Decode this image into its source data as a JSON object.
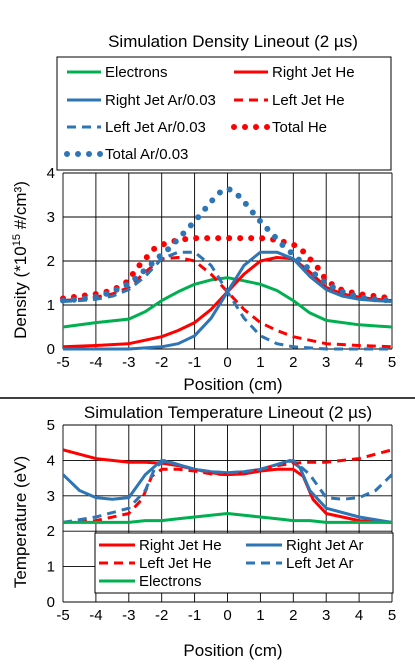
{
  "chart_data": [
    {
      "type": "line",
      "title": "Simulation Density Lineout (2 µs)",
      "xlabel": "Position (cm)",
      "ylabel_main": "Density (*10",
      "ylabel_exp": "15",
      "ylabel_rest": " #/cm³)",
      "xlim": [
        -5,
        5
      ],
      "ylim": [
        0,
        4
      ],
      "xticks": [
        "-5",
        "-4",
        "-3",
        "-2",
        "-1",
        "0",
        "1",
        "2",
        "3",
        "4",
        "5"
      ],
      "yticks": [
        "0",
        "1",
        "2",
        "3",
        "4"
      ],
      "grid": true,
      "legend_position": "top",
      "series": [
        {
          "name": "Electrons",
          "color": "#00b050",
          "style": "solid",
          "x": [
            -5,
            -4,
            -3,
            -2.5,
            -2,
            -1.5,
            -1,
            -0.5,
            0,
            0.5,
            1,
            1.5,
            2,
            2.5,
            3,
            4,
            5
          ],
          "y": [
            0.5,
            0.6,
            0.68,
            0.85,
            1.1,
            1.3,
            1.47,
            1.57,
            1.62,
            1.55,
            1.47,
            1.33,
            1.1,
            0.82,
            0.65,
            0.55,
            0.5
          ]
        },
        {
          "name": "Right Jet He",
          "color": "#ff0000",
          "style": "solid",
          "x": [
            -5,
            -4,
            -3,
            -2,
            -1.5,
            -1,
            -0.5,
            0,
            0.5,
            1,
            1.5,
            2,
            2.5,
            3,
            3.5,
            4,
            4.5,
            5
          ],
          "y": [
            0.05,
            0.08,
            0.12,
            0.28,
            0.42,
            0.6,
            0.9,
            1.3,
            1.7,
            2.0,
            2.08,
            2.05,
            1.75,
            1.4,
            1.25,
            1.18,
            1.13,
            1.1
          ]
        },
        {
          "name": "Right Jet Ar/0.03",
          "color": "#2e75b6",
          "style": "solid",
          "x": [
            -5,
            -3,
            -2,
            -1.5,
            -1,
            -0.5,
            0,
            0.5,
            1,
            1.5,
            2,
            2.5,
            3,
            3.5,
            4,
            4.5,
            5
          ],
          "y": [
            0,
            0,
            0.05,
            0.12,
            0.3,
            0.7,
            1.3,
            1.9,
            2.2,
            2.2,
            2.05,
            1.65,
            1.35,
            1.2,
            1.13,
            1.1,
            1.08
          ]
        },
        {
          "name": "Left Jet He",
          "color": "#ff0000",
          "style": "dash",
          "x": [
            -5,
            -4.5,
            -4,
            -3.5,
            -3,
            -2.5,
            -2,
            -1.5,
            -1,
            -0.5,
            0,
            0.5,
            1,
            1.5,
            2,
            3,
            4,
            5
          ],
          "y": [
            1.1,
            1.13,
            1.18,
            1.25,
            1.4,
            1.75,
            2.05,
            2.08,
            2.0,
            1.7,
            1.3,
            0.9,
            0.6,
            0.42,
            0.28,
            0.12,
            0.08,
            0.05
          ]
        },
        {
          "name": "Left Jet Ar/0.03",
          "color": "#2e75b6",
          "style": "dash",
          "x": [
            -5,
            -4.5,
            -4,
            -3.5,
            -3,
            -2.5,
            -2,
            -1.5,
            -1,
            -0.5,
            0,
            0.5,
            1,
            1.5,
            2,
            3,
            5
          ],
          "y": [
            1.08,
            1.1,
            1.13,
            1.2,
            1.35,
            1.65,
            2.05,
            2.2,
            2.2,
            1.9,
            1.3,
            0.7,
            0.3,
            0.12,
            0.05,
            0,
            0
          ]
        },
        {
          "name": "Total He",
          "color": "#ff0000",
          "style": "dot",
          "x": [
            -5,
            -4.5,
            -4,
            -3.5,
            -3,
            -2.8,
            -2.5,
            -2.2,
            -2,
            -1.5,
            -1,
            -0.5,
            0,
            0.5,
            1,
            1.5,
            2,
            2.2,
            2.5,
            2.8,
            3,
            3.5,
            4,
            4.5,
            5
          ],
          "y": [
            1.15,
            1.2,
            1.25,
            1.33,
            1.55,
            1.8,
            2.05,
            2.3,
            2.37,
            2.48,
            2.52,
            2.52,
            2.52,
            2.52,
            2.52,
            2.48,
            2.37,
            2.3,
            2.05,
            1.8,
            1.55,
            1.33,
            1.25,
            1.2,
            1.15
          ]
        },
        {
          "name": "Total Ar/0.03",
          "color": "#2e75b6",
          "style": "dot",
          "x": [
            -5,
            -4.5,
            -4,
            -3.5,
            -3,
            -2.5,
            -2,
            -1.75,
            -1.5,
            -1.25,
            -1,
            -0.75,
            -0.5,
            -0.25,
            0,
            0.25,
            0.5,
            0.75,
            1,
            1.25,
            1.5,
            1.75,
            2,
            2.5,
            3,
            3.5,
            4,
            4.5,
            5
          ],
          "y": [
            1.1,
            1.13,
            1.18,
            1.3,
            1.48,
            1.8,
            2.15,
            2.3,
            2.5,
            2.7,
            2.9,
            3.12,
            3.35,
            3.55,
            3.65,
            3.55,
            3.35,
            3.12,
            2.9,
            2.7,
            2.5,
            2.3,
            2.15,
            1.8,
            1.48,
            1.3,
            1.18,
            1.13,
            1.1
          ]
        }
      ]
    },
    {
      "type": "line",
      "title": "Simulation Temperature Lineout (2 µs)",
      "xlabel": "Position (cm)",
      "ylabel": "Temperature (eV)",
      "xlim": [
        -5,
        5
      ],
      "ylim": [
        0,
        5
      ],
      "xticks": [
        "-5",
        "-4",
        "-3",
        "-2",
        "-1",
        "0",
        "1",
        "2",
        "3",
        "4",
        "5"
      ],
      "yticks": [
        "0",
        "1",
        "2",
        "3",
        "4",
        "5"
      ],
      "grid": true,
      "legend_position": "bottom-center",
      "series": [
        {
          "name": "Right Jet He",
          "color": "#ff0000",
          "style": "solid",
          "x": [
            -5,
            -4,
            -3,
            -2.5,
            -2,
            -1.5,
            -1,
            -0.5,
            0,
            0.5,
            1,
            1.5,
            2,
            2.3,
            2.6,
            3,
            4,
            5
          ],
          "y": [
            4.3,
            4.05,
            3.95,
            3.95,
            3.92,
            3.85,
            3.75,
            3.65,
            3.6,
            3.62,
            3.7,
            3.75,
            3.75,
            3.55,
            2.9,
            2.5,
            2.3,
            2.25
          ]
        },
        {
          "name": "Right Jet Ar",
          "color": "#2e75b6",
          "style": "solid",
          "x": [
            -5,
            -4.5,
            -4,
            -3.5,
            -3,
            -2.5,
            -2,
            -1.5,
            -1,
            -0.5,
            0,
            0.5,
            1,
            1.5,
            1.9,
            2.2,
            2.5,
            3,
            4,
            5
          ],
          "y": [
            3.6,
            3.15,
            2.95,
            2.9,
            2.95,
            3.6,
            4.0,
            3.88,
            3.75,
            3.68,
            3.65,
            3.68,
            3.75,
            3.88,
            4.0,
            3.8,
            3.15,
            2.65,
            2.4,
            2.25
          ]
        },
        {
          "name": "Left Jet He",
          "color": "#ff0000",
          "style": "dash",
          "x": [
            -5,
            -4,
            -3,
            -2.6,
            -2.3,
            -2,
            -1.5,
            -1,
            -0.5,
            0,
            0.5,
            1,
            1.5,
            2,
            2.5,
            3,
            4,
            5
          ],
          "y": [
            2.25,
            2.3,
            2.5,
            2.9,
            3.55,
            3.75,
            3.75,
            3.7,
            3.62,
            3.6,
            3.65,
            3.75,
            3.85,
            3.92,
            3.95,
            3.95,
            4.05,
            4.3
          ]
        },
        {
          "name": "Left Jet Ar",
          "color": "#2e75b6",
          "style": "dash",
          "x": [
            -5,
            -4,
            -3,
            -2.5,
            -2.2,
            -1.9,
            -1.5,
            -1,
            -0.5,
            0,
            0.5,
            1,
            1.5,
            2,
            2.5,
            3,
            3.5,
            4,
            4.5,
            5
          ],
          "y": [
            2.25,
            2.4,
            2.65,
            3.15,
            3.8,
            4.0,
            3.88,
            3.75,
            3.68,
            3.65,
            3.68,
            3.75,
            3.88,
            4.0,
            3.6,
            2.95,
            2.9,
            2.95,
            3.15,
            3.6
          ]
        },
        {
          "name": "Electrons",
          "color": "#00b050",
          "style": "solid",
          "x": [
            -5,
            -3.5,
            -3,
            -2.5,
            -2,
            -1.5,
            -1,
            -0.5,
            0,
            0.5,
            1,
            1.5,
            2,
            2.5,
            3,
            3.5,
            5
          ],
          "y": [
            2.25,
            2.25,
            2.25,
            2.3,
            2.3,
            2.35,
            2.4,
            2.45,
            2.5,
            2.45,
            2.4,
            2.35,
            2.3,
            2.3,
            2.25,
            2.25,
            2.25
          ]
        }
      ]
    }
  ]
}
